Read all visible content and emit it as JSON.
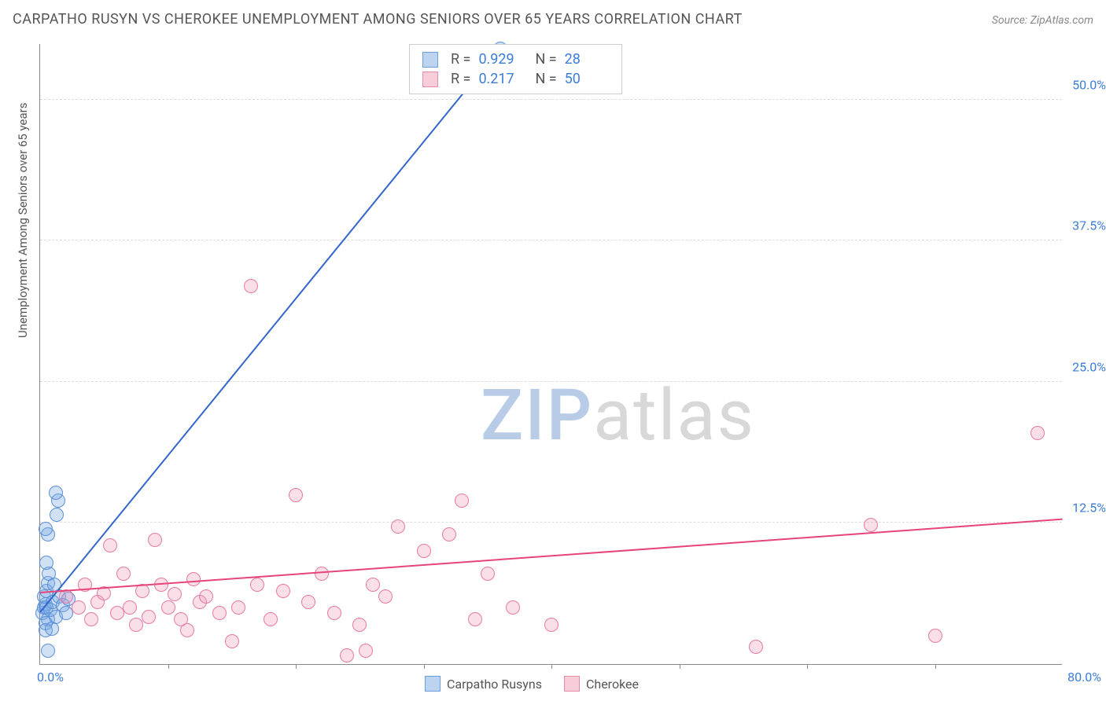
{
  "title": "CARPATHO RUSYN VS CHEROKEE UNEMPLOYMENT AMONG SENIORS OVER 65 YEARS CORRELATION CHART",
  "source": "Source: ZipAtlas.com",
  "y_axis_label": "Unemployment Among Seniors over 65 years",
  "watermark": {
    "part1": "ZIP",
    "part2": "atlas"
  },
  "chart": {
    "type": "scatter",
    "xlim": [
      0,
      80
    ],
    "ylim": [
      0,
      55
    ],
    "x_origin_label": "0.0%",
    "x_max_label": "80.0%",
    "y_ticks": [
      12.5,
      25.0,
      37.5,
      50.0
    ],
    "y_tick_labels": [
      "12.5%",
      "25.0%",
      "37.5%",
      "50.0%"
    ],
    "x_tick_positions": [
      10,
      20,
      30,
      40,
      50,
      60,
      70
    ],
    "background_color": "#ffffff",
    "grid_color": "#dddddd",
    "axis_color": "#888888",
    "tick_label_color": "#3b7dd8",
    "point_radius": 9
  },
  "series": [
    {
      "name": "Carpatho Rusyns",
      "fill": "rgba(120,170,230,0.35)",
      "stroke": "#5b8fd6",
      "swatch_fill": "#bcd4ef",
      "swatch_border": "#6a9edc",
      "r": "0.929",
      "n": "28",
      "trend": {
        "x1": 0,
        "y1": 4.5,
        "x2": 36,
        "y2": 54.5,
        "color": "#3366cc",
        "width": 2
      },
      "points": [
        [
          0.2,
          4.5
        ],
        [
          0.3,
          5.0
        ],
        [
          0.4,
          5.3
        ],
        [
          0.5,
          5.0
        ],
        [
          0.6,
          4.0
        ],
        [
          0.4,
          3.6
        ],
        [
          0.3,
          6.0
        ],
        [
          0.5,
          6.5
        ],
        [
          0.6,
          7.2
        ],
        [
          0.4,
          3.0
        ],
        [
          0.8,
          4.8
        ],
        [
          1.0,
          5.5
        ],
        [
          1.2,
          4.2
        ],
        [
          0.7,
          8.0
        ],
        [
          0.5,
          9.0
        ],
        [
          0.6,
          11.5
        ],
        [
          0.4,
          12.0
        ],
        [
          1.3,
          13.2
        ],
        [
          1.4,
          14.5
        ],
        [
          1.2,
          15.2
        ],
        [
          1.5,
          6.0
        ],
        [
          1.8,
          5.2
        ],
        [
          2.0,
          4.5
        ],
        [
          2.2,
          5.8
        ],
        [
          0.6,
          1.2
        ],
        [
          0.9,
          3.1
        ],
        [
          1.1,
          7.0
        ],
        [
          36.0,
          54.5
        ]
      ]
    },
    {
      "name": "Cherokee",
      "fill": "rgba(240,150,180,0.30)",
      "stroke": "#e67aa3",
      "swatch_fill": "#f8cdd9",
      "swatch_border": "#e88aa8",
      "r": "0.217",
      "n": "50",
      "trend": {
        "x1": 0,
        "y1": 6.3,
        "x2": 80,
        "y2": 12.8,
        "color": "#e6447a",
        "width": 2
      },
      "points": [
        [
          2.0,
          6.0
        ],
        [
          3.0,
          5.0
        ],
        [
          3.5,
          7.0
        ],
        [
          4.0,
          4.0
        ],
        [
          4.5,
          5.5
        ],
        [
          5.0,
          6.3
        ],
        [
          5.5,
          10.5
        ],
        [
          6.0,
          4.5
        ],
        [
          6.5,
          8.0
        ],
        [
          7.0,
          5.0
        ],
        [
          7.5,
          3.5
        ],
        [
          8.0,
          6.5
        ],
        [
          8.5,
          4.2
        ],
        [
          9.0,
          11.0
        ],
        [
          9.5,
          7.0
        ],
        [
          10.0,
          5.0
        ],
        [
          10.5,
          6.2
        ],
        [
          11.0,
          4.0
        ],
        [
          11.5,
          3.0
        ],
        [
          12.0,
          7.5
        ],
        [
          12.5,
          5.5
        ],
        [
          13.0,
          6.0
        ],
        [
          14.0,
          4.5
        ],
        [
          15.0,
          2.0
        ],
        [
          15.5,
          5.0
        ],
        [
          16.5,
          33.5
        ],
        [
          17.0,
          7.0
        ],
        [
          18.0,
          4.0
        ],
        [
          19.0,
          6.5
        ],
        [
          20.0,
          15.0
        ],
        [
          21.0,
          5.5
        ],
        [
          22.0,
          8.0
        ],
        [
          23.0,
          4.5
        ],
        [
          24.0,
          0.8
        ],
        [
          25.0,
          3.5
        ],
        [
          25.5,
          1.2
        ],
        [
          26.0,
          7.0
        ],
        [
          27.0,
          6.0
        ],
        [
          28.0,
          12.2
        ],
        [
          30.0,
          10.0
        ],
        [
          32.0,
          11.5
        ],
        [
          33.0,
          14.5
        ],
        [
          34.0,
          4.0
        ],
        [
          35.0,
          8.0
        ],
        [
          37.0,
          5.0
        ],
        [
          40.0,
          3.5
        ],
        [
          56.0,
          1.5
        ],
        [
          65.0,
          12.3
        ],
        [
          70.0,
          2.5
        ],
        [
          78.0,
          20.5
        ]
      ]
    }
  ],
  "legend_bottom": [
    "Carpatho Rusyns",
    "Cherokee"
  ]
}
